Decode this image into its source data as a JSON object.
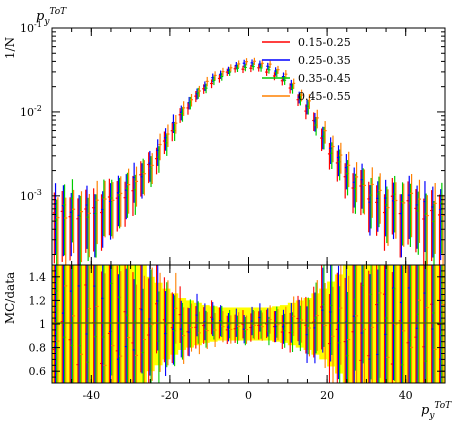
{
  "chart_data": [
    {
      "type": "scatter",
      "panel": "main",
      "title": "",
      "xlabel": "p_y^{ToT}",
      "ylabel": "1/N",
      "top_label_base": "p",
      "top_label_sub": "y",
      "top_label_sup": "ToT",
      "ylabel_text": "1/N",
      "y_scale": "log",
      "xlim": [
        -50,
        50
      ],
      "ylim": [
        0.00015,
        0.1
      ],
      "y_tick_labels": [
        {
          "base": "10",
          "exp": "-1",
          "value": 0.1
        },
        {
          "base": "10",
          "exp": "-2",
          "value": 0.01
        },
        {
          "base": "10",
          "exp": "-3",
          "value": 0.001
        }
      ],
      "legend_position": "top-right",
      "series": [
        {
          "name": "0.15-0.25",
          "color": "#ff0000",
          "offset": -0.4,
          "scale": 0.9
        },
        {
          "name": "0.25-0.35",
          "color": "#0000ff",
          "offset": -0.1,
          "scale": 1.0
        },
        {
          "name": "0.35-0.45",
          "color": "#00cc00",
          "offset": 0.2,
          "scale": 0.95
        },
        {
          "name": "0.45-0.55",
          "color": "#ff8000",
          "offset": 0.5,
          "scale": 1.05
        }
      ],
      "x": [
        -49,
        -47,
        -45,
        -43,
        -41,
        -39,
        -37,
        -35,
        -33,
        -31,
        -29,
        -27,
        -25,
        -23,
        -21,
        -19,
        -17,
        -15,
        -13,
        -11,
        -9,
        -7,
        -5,
        -3,
        -1,
        1,
        3,
        5,
        7,
        9,
        11,
        13,
        15,
        17,
        19,
        21,
        23,
        25,
        27,
        29,
        31,
        33,
        35,
        37,
        39,
        41,
        43,
        45,
        47,
        49
      ],
      "y": [
        0.0007,
        0.0007,
        0.0008,
        0.0007,
        0.0008,
        0.0008,
        0.0009,
        0.0009,
        0.001,
        0.0011,
        0.0014,
        0.0018,
        0.0025,
        0.0035,
        0.005,
        0.007,
        0.01,
        0.013,
        0.017,
        0.021,
        0.025,
        0.029,
        0.032,
        0.035,
        0.037,
        0.037,
        0.036,
        0.034,
        0.03,
        0.026,
        0.021,
        0.016,
        0.012,
        0.008,
        0.0055,
        0.0038,
        0.0027,
        0.002,
        0.0016,
        0.0013,
        0.0011,
        0.001,
        0.0009,
        0.0009,
        0.0008,
        0.0008,
        0.0008,
        0.0007,
        0.0007,
        0.0007
      ],
      "rel_err": [
        0.75,
        0.75,
        0.7,
        0.75,
        0.7,
        0.7,
        0.65,
        0.65,
        0.6,
        0.55,
        0.5,
        0.45,
        0.4,
        0.35,
        0.3,
        0.25,
        0.2,
        0.17,
        0.15,
        0.13,
        0.12,
        0.11,
        0.1,
        0.1,
        0.1,
        0.1,
        0.1,
        0.1,
        0.11,
        0.12,
        0.14,
        0.16,
        0.2,
        0.25,
        0.3,
        0.35,
        0.4,
        0.45,
        0.5,
        0.55,
        0.6,
        0.6,
        0.65,
        0.65,
        0.7,
        0.7,
        0.7,
        0.75,
        0.75,
        0.75
      ]
    },
    {
      "type": "scatter",
      "panel": "ratio",
      "title": "",
      "xlabel": "p_y^{ToT}",
      "ylabel": "MC/data",
      "ylabel_text": "MC/data",
      "bottom_label_base": "p",
      "bottom_label_sub": "y",
      "bottom_label_sup": "ToT",
      "xlim": [
        -50,
        50
      ],
      "ylim": [
        0.5,
        1.5
      ],
      "x_tick_labels": [
        "-40",
        "-20",
        "0",
        "20",
        "40"
      ],
      "x_tick_values": [
        -40,
        -20,
        0,
        20,
        40
      ],
      "y_tick_labels": [
        "0.6",
        "0.8",
        "1",
        "1.2",
        "1.4"
      ],
      "y_tick_values": [
        0.6,
        0.8,
        1.0,
        1.2,
        1.4
      ],
      "reference_line": 1.0,
      "band_color": "#ffff00",
      "band_half_width": [
        0.5,
        0.5,
        0.5,
        0.5,
        0.5,
        0.5,
        0.5,
        0.5,
        0.5,
        0.5,
        0.5,
        0.5,
        0.4,
        0.35,
        0.3,
        0.26,
        0.22,
        0.2,
        0.18,
        0.16,
        0.15,
        0.14,
        0.14,
        0.14,
        0.14,
        0.14,
        0.14,
        0.14,
        0.15,
        0.16,
        0.18,
        0.2,
        0.22,
        0.26,
        0.3,
        0.36,
        0.42,
        0.5,
        0.5,
        0.5,
        0.5,
        0.5,
        0.5,
        0.5,
        0.5,
        0.5,
        0.5,
        0.5,
        0.5,
        0.5
      ]
    }
  ]
}
